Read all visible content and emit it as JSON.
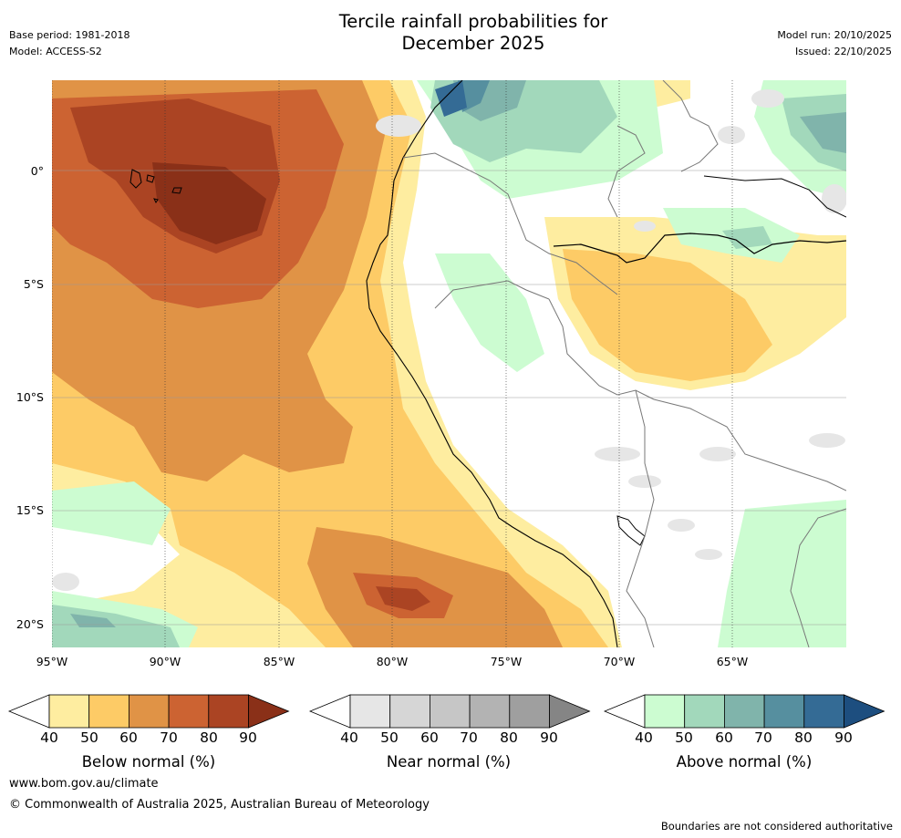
{
  "title": {
    "line1": "Tercile rainfall probabilities for",
    "line2": "December 2025"
  },
  "meta_left": {
    "base_period": "Base period: 1981-2018",
    "model": "Model: ACCESS-S2"
  },
  "meta_right": {
    "model_run": "Model run: 20/10/2025",
    "issued": "Issued: 22/10/2025"
  },
  "map": {
    "latitude_ticks": [
      "0°",
      "5°S",
      "10°S",
      "15°S",
      "20°S"
    ],
    "longitude_ticks": [
      "95°W",
      "90°W",
      "85°W",
      "80°W",
      "75°W",
      "70°W",
      "65°W"
    ]
  },
  "legends": [
    {
      "label": "Below normal (%)",
      "ticks": [
        "40",
        "50",
        "60",
        "70",
        "80",
        "90"
      ],
      "colors": [
        "#ffffff",
        "#feeda0",
        "#fdcb66",
        "#e09346",
        "#cc6332",
        "#ab4423",
        "#8a3018"
      ]
    },
    {
      "label": "Near normal (%)",
      "ticks": [
        "40",
        "50",
        "60",
        "70",
        "80",
        "90"
      ],
      "colors": [
        "#ffffff",
        "#e6e6e6",
        "#d6d6d6",
        "#c6c6c6",
        "#b3b3b3",
        "#9f9f9f",
        "#858585"
      ]
    },
    {
      "label": "Above normal (%)",
      "ticks": [
        "40",
        "50",
        "60",
        "70",
        "80",
        "90"
      ],
      "colors": [
        "#ffffff",
        "#ccfcd1",
        "#a2d8bb",
        "#80b4ab",
        "#568f9f",
        "#346b95",
        "#1d4e7f"
      ]
    }
  ],
  "footer": {
    "website": "www.bom.gov.au/climate",
    "copyright": "© Commonwealth of Australia 2025, Australian Bureau of Meteorology",
    "disclaimer": "Boundaries are not considered authoritative"
  }
}
